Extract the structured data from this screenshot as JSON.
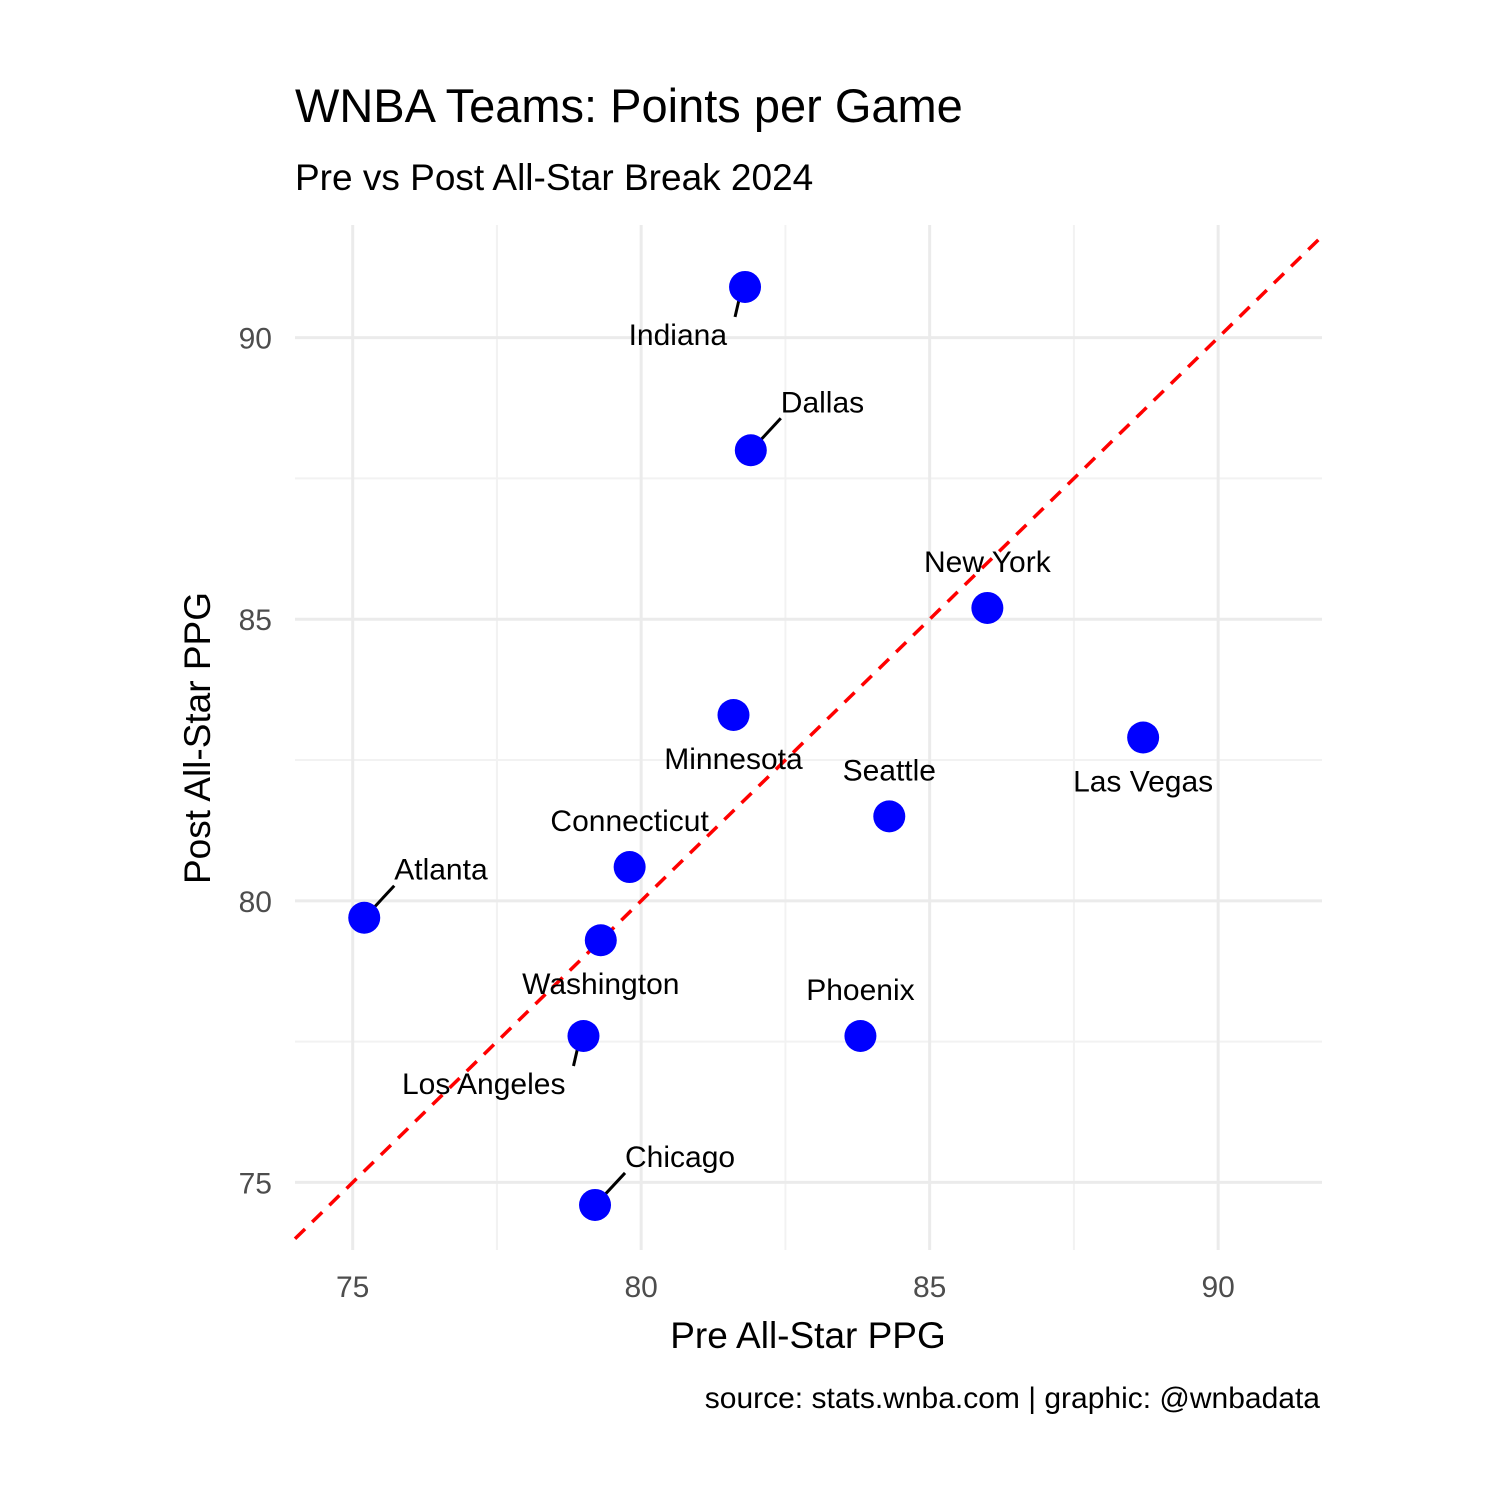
{
  "chart_data": {
    "type": "scatter",
    "title": "WNBA Teams: Points per Game",
    "subtitle": "Pre vs Post All-Star Break 2024",
    "xlabel": "Pre All-Star PPG",
    "ylabel": "Post All-Star PPG",
    "caption": "source: stats.wnba.com | graphic: @wnbadata",
    "xlim": [
      74.0,
      91.8
    ],
    "ylim": [
      73.8,
      92.0
    ],
    "x_ticks": [
      75,
      80,
      85,
      90
    ],
    "y_ticks": [
      75,
      80,
      85,
      90
    ],
    "grid": true,
    "reference_line": {
      "type": "y=x",
      "style": "dashed",
      "color": "#ff0000"
    },
    "point_color": "#0000ff",
    "points": [
      {
        "team": "Indiana",
        "x": 81.8,
        "y": 90.9,
        "label_side": "bottom-left"
      },
      {
        "team": "Dallas",
        "x": 81.9,
        "y": 88.0,
        "label_side": "top-right"
      },
      {
        "team": "New York",
        "x": 86.0,
        "y": 85.2,
        "label_side": "top"
      },
      {
        "team": "Minnesota",
        "x": 81.6,
        "y": 83.3,
        "label_side": "bottom"
      },
      {
        "team": "Las Vegas",
        "x": 88.7,
        "y": 82.9,
        "label_side": "bottom"
      },
      {
        "team": "Seattle",
        "x": 84.3,
        "y": 81.5,
        "label_side": "top"
      },
      {
        "team": "Connecticut",
        "x": 79.8,
        "y": 80.6,
        "label_side": "top"
      },
      {
        "team": "Atlanta",
        "x": 75.2,
        "y": 79.7,
        "label_side": "top-right"
      },
      {
        "team": "Washington",
        "x": 79.3,
        "y": 79.3,
        "label_side": "bottom"
      },
      {
        "team": "Los Angeles",
        "x": 79.0,
        "y": 77.6,
        "label_side": "bottom-left"
      },
      {
        "team": "Phoenix",
        "x": 83.8,
        "y": 77.6,
        "label_side": "top"
      },
      {
        "team": "Chicago",
        "x": 79.2,
        "y": 74.6,
        "label_side": "top-right"
      }
    ]
  }
}
